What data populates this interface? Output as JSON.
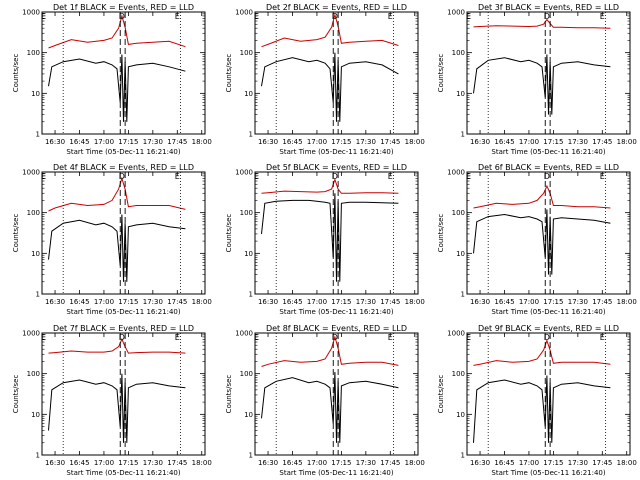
{
  "chart_data": [
    {
      "type": "line",
      "title": "Det 1f BLACK = Events, RED = LLD",
      "xlabel": "Start Time (05-Dec-11 16:21:40)",
      "ylabel": "Counts/sec",
      "y_scale": "log",
      "ylim": [
        1,
        1000
      ],
      "xticks": [
        "16:30",
        "16:45",
        "17:00",
        "17:15",
        "17:30",
        "17:45",
        "18:00"
      ],
      "yticks": [
        "1",
        "10",
        "100",
        "1000"
      ],
      "annotations": [
        "E",
        "D",
        "E"
      ],
      "series": [
        {
          "color": "#cc0000",
          "x": [
            "16:26",
            "16:30",
            "16:40",
            "16:50",
            "17:00",
            "17:05",
            "17:09",
            "17:11",
            "17:13",
            "17:15",
            "17:20",
            "17:30",
            "17:40",
            "17:50"
          ],
          "values": [
            130,
            150,
            210,
            180,
            200,
            230,
            400,
            800,
            420,
            160,
            170,
            180,
            190,
            140
          ]
        },
        {
          "color": "#000000",
          "x": [
            "16:26",
            "16:28",
            "16:35",
            "16:45",
            "16:55",
            "17:00",
            "17:05",
            "17:08",
            "17:10",
            "17:11",
            "17:12",
            "17:13",
            "17:14",
            "17:15",
            "17:20",
            "17:30",
            "17:40",
            "17:50"
          ],
          "values": [
            15,
            45,
            60,
            70,
            55,
            60,
            50,
            40,
            6,
            90,
            2,
            60,
            2,
            45,
            50,
            55,
            45,
            35
          ]
        }
      ]
    },
    {
      "type": "line",
      "title": "Det 2f BLACK = Events, RED = LLD",
      "xlabel": "Start Time (05-Dec-11 16:21:40)",
      "ylabel": "Counts/sec",
      "y_scale": "log",
      "ylim": [
        1,
        1000
      ],
      "xticks": [
        "16:30",
        "16:45",
        "17:00",
        "17:15",
        "17:30",
        "17:45",
        "18:00"
      ],
      "yticks": [
        "1",
        "10",
        "100",
        "1000"
      ],
      "annotations": [
        "E",
        "D",
        "E"
      ],
      "series": [
        {
          "color": "#cc0000",
          "x": [
            "16:26",
            "16:30",
            "16:40",
            "16:50",
            "17:00",
            "17:05",
            "17:09",
            "17:11",
            "17:13",
            "17:15",
            "17:20",
            "17:30",
            "17:40",
            "17:50"
          ],
          "values": [
            140,
            160,
            230,
            190,
            210,
            240,
            420,
            850,
            450,
            170,
            180,
            190,
            200,
            150
          ]
        },
        {
          "color": "#000000",
          "x": [
            "16:26",
            "16:28",
            "16:35",
            "16:45",
            "16:55",
            "17:00",
            "17:05",
            "17:08",
            "17:10",
            "17:11",
            "17:12",
            "17:13",
            "17:14",
            "17:15",
            "17:20",
            "17:30",
            "17:40",
            "17:50"
          ],
          "values": [
            15,
            45,
            60,
            75,
            60,
            65,
            55,
            40,
            6,
            100,
            2,
            65,
            2,
            45,
            55,
            60,
            50,
            30
          ]
        }
      ]
    },
    {
      "type": "line",
      "title": "Det 3f BLACK = Events, RED = LLD",
      "xlabel": "Start Time (05-Dec-11 16:21:40)",
      "ylabel": "Counts/sec",
      "y_scale": "log",
      "ylim": [
        1,
        1000
      ],
      "xticks": [
        "16:30",
        "16:45",
        "17:00",
        "17:15",
        "17:30",
        "17:45",
        "18:00"
      ],
      "yticks": [
        "1",
        "10",
        "100",
        "1000"
      ],
      "annotations": [
        "E",
        "D",
        "E"
      ],
      "series": [
        {
          "color": "#cc0000",
          "x": [
            "16:26",
            "16:30",
            "16:40",
            "16:50",
            "17:00",
            "17:05",
            "17:09",
            "17:11",
            "17:13",
            "17:15",
            "17:20",
            "17:30",
            "17:40",
            "17:50"
          ],
          "values": [
            430,
            440,
            460,
            450,
            440,
            450,
            500,
            650,
            520,
            420,
            420,
            410,
            410,
            400
          ]
        },
        {
          "color": "#000000",
          "x": [
            "16:26",
            "16:28",
            "16:35",
            "16:45",
            "16:55",
            "17:00",
            "17:05",
            "17:08",
            "17:10",
            "17:11",
            "17:12",
            "17:13",
            "17:14",
            "17:15",
            "17:20",
            "17:30",
            "17:40",
            "17:50"
          ],
          "values": [
            10,
            40,
            65,
            75,
            60,
            65,
            55,
            45,
            8,
            90,
            3,
            60,
            3,
            45,
            55,
            60,
            50,
            45
          ]
        }
      ]
    },
    {
      "type": "line",
      "title": "Det 4f BLACK = Events, RED = LLD",
      "xlabel": "Start Time (05-Dec-11 16:21:40)",
      "ylabel": "Counts/sec",
      "y_scale": "log",
      "ylim": [
        1,
        1000
      ],
      "xticks": [
        "16:30",
        "16:45",
        "17:00",
        "17:15",
        "17:30",
        "17:45",
        "18:00"
      ],
      "yticks": [
        "1",
        "10",
        "100",
        "1000"
      ],
      "annotations": [
        "E",
        "D",
        "E"
      ],
      "series": [
        {
          "color": "#cc0000",
          "x": [
            "16:26",
            "16:30",
            "16:40",
            "16:50",
            "17:00",
            "17:05",
            "17:09",
            "17:11",
            "17:13",
            "17:15",
            "17:20",
            "17:30",
            "17:40",
            "17:50"
          ],
          "values": [
            110,
            130,
            170,
            150,
            160,
            200,
            380,
            700,
            380,
            140,
            150,
            150,
            150,
            120
          ]
        },
        {
          "color": "#000000",
          "x": [
            "16:26",
            "16:28",
            "16:35",
            "16:45",
            "16:55",
            "17:00",
            "17:05",
            "17:08",
            "17:10",
            "17:11",
            "17:12",
            "17:13",
            "17:14",
            "17:15",
            "17:20",
            "17:30",
            "17:40",
            "17:50"
          ],
          "values": [
            7,
            35,
            55,
            65,
            50,
            55,
            45,
            35,
            5,
            90,
            2,
            55,
            2,
            45,
            50,
            55,
            45,
            40
          ]
        }
      ]
    },
    {
      "type": "line",
      "title": "Det 5f BLACK = Events, RED = LLD",
      "xlabel": "Start Time (05-Dec-11 16:21:40)",
      "ylabel": "Counts/sec",
      "y_scale": "log",
      "ylim": [
        1,
        1000
      ],
      "xticks": [
        "16:30",
        "16:45",
        "17:00",
        "17:15",
        "17:30",
        "17:45",
        "18:00"
      ],
      "yticks": [
        "1",
        "10",
        "100",
        "1000"
      ],
      "annotations": [
        "E",
        "D",
        "E"
      ],
      "series": [
        {
          "color": "#cc0000",
          "x": [
            "16:26",
            "16:30",
            "16:40",
            "16:50",
            "17:00",
            "17:05",
            "17:09",
            "17:11",
            "17:13",
            "17:15",
            "17:20",
            "17:30",
            "17:40",
            "17:50"
          ],
          "values": [
            300,
            310,
            340,
            330,
            320,
            330,
            380,
            650,
            380,
            300,
            300,
            310,
            310,
            300
          ]
        },
        {
          "color": "#000000",
          "x": [
            "16:26",
            "16:28",
            "16:35",
            "16:45",
            "16:55",
            "17:00",
            "17:05",
            "17:08",
            "17:10",
            "17:11",
            "17:12",
            "17:13",
            "17:14",
            "17:15",
            "17:20",
            "17:30",
            "17:40",
            "17:50"
          ],
          "values": [
            30,
            170,
            190,
            200,
            200,
            190,
            180,
            170,
            8,
            300,
            2,
            190,
            2,
            170,
            180,
            180,
            175,
            170
          ]
        }
      ]
    },
    {
      "type": "line",
      "title": "Det 6f BLACK = Events, RED = LLD",
      "xlabel": "Start Time (05-Dec-11 16:21:40)",
      "ylabel": "Counts/sec",
      "y_scale": "log",
      "ylim": [
        1,
        1000
      ],
      "xticks": [
        "16:30",
        "16:45",
        "17:00",
        "17:15",
        "17:30",
        "17:45",
        "18:00"
      ],
      "yticks": [
        "1",
        "10",
        "100",
        "1000"
      ],
      "annotations": [
        "E",
        "D",
        "E"
      ],
      "series": [
        {
          "color": "#cc0000",
          "x": [
            "16:26",
            "16:30",
            "16:40",
            "16:50",
            "17:00",
            "17:05",
            "17:09",
            "17:11",
            "17:13",
            "17:15",
            "17:20",
            "17:30",
            "17:40",
            "17:50"
          ],
          "values": [
            130,
            140,
            170,
            160,
            170,
            200,
            300,
            450,
            300,
            150,
            150,
            140,
            140,
            130
          ]
        },
        {
          "color": "#000000",
          "x": [
            "16:26",
            "16:28",
            "16:35",
            "16:45",
            "16:55",
            "17:00",
            "17:05",
            "17:08",
            "17:10",
            "17:11",
            "17:12",
            "17:13",
            "17:14",
            "17:15",
            "17:20",
            "17:30",
            "17:40",
            "17:50"
          ],
          "values": [
            10,
            60,
            80,
            90,
            75,
            80,
            70,
            60,
            8,
            120,
            3,
            80,
            3,
            70,
            75,
            70,
            65,
            55
          ]
        }
      ]
    },
    {
      "type": "line",
      "title": "Det 7f BLACK = Events, RED = LLD",
      "xlabel": "Start Time (05-Dec-11 16:21:40)",
      "ylabel": "Counts/sec",
      "y_scale": "log",
      "ylim": [
        1,
        1000
      ],
      "xticks": [
        "16:30",
        "16:45",
        "17:00",
        "17:15",
        "17:30",
        "17:45",
        "18:00"
      ],
      "yticks": [
        "1",
        "10",
        "100",
        "1000"
      ],
      "annotations": [
        "E",
        "D",
        "E"
      ],
      "series": [
        {
          "color": "#cc0000",
          "x": [
            "16:26",
            "16:30",
            "16:40",
            "16:50",
            "17:00",
            "17:05",
            "17:09",
            "17:11",
            "17:13",
            "17:15",
            "17:20",
            "17:30",
            "17:40",
            "17:50"
          ],
          "values": [
            320,
            330,
            360,
            340,
            340,
            360,
            460,
            700,
            460,
            320,
            330,
            340,
            340,
            320
          ]
        },
        {
          "color": "#000000",
          "x": [
            "16:26",
            "16:28",
            "16:35",
            "16:45",
            "16:55",
            "17:00",
            "17:05",
            "17:08",
            "17:10",
            "17:11",
            "17:12",
            "17:13",
            "17:14",
            "17:15",
            "17:20",
            "17:30",
            "17:40",
            "17:50"
          ],
          "values": [
            4,
            40,
            60,
            70,
            55,
            60,
            50,
            40,
            5,
            100,
            2,
            60,
            2,
            45,
            55,
            60,
            50,
            45
          ]
        }
      ]
    },
    {
      "type": "line",
      "title": "Det 8f BLACK = Events, RED = LLD",
      "xlabel": "Start Time (05-Dec-11 16:21:40)",
      "ylabel": "Counts/sec",
      "y_scale": "log",
      "ylim": [
        1,
        1000
      ],
      "xticks": [
        "16:30",
        "16:45",
        "17:00",
        "17:15",
        "17:30",
        "17:45",
        "18:00"
      ],
      "yticks": [
        "1",
        "10",
        "100",
        "1000"
      ],
      "annotations": [
        "E",
        "D",
        "E"
      ],
      "series": [
        {
          "color": "#cc0000",
          "x": [
            "16:26",
            "16:30",
            "16:40",
            "16:50",
            "17:00",
            "17:05",
            "17:09",
            "17:11",
            "17:13",
            "17:15",
            "17:20",
            "17:30",
            "17:40",
            "17:50"
          ],
          "values": [
            150,
            170,
            210,
            190,
            200,
            230,
            420,
            800,
            420,
            170,
            180,
            190,
            190,
            160
          ]
        },
        {
          "color": "#000000",
          "x": [
            "16:26",
            "16:28",
            "16:35",
            "16:45",
            "16:55",
            "17:00",
            "17:05",
            "17:08",
            "17:10",
            "17:11",
            "17:12",
            "17:13",
            "17:14",
            "17:15",
            "17:20",
            "17:30",
            "17:40",
            "17:50"
          ],
          "values": [
            8,
            45,
            65,
            80,
            60,
            65,
            55,
            45,
            6,
            110,
            2,
            65,
            2,
            50,
            60,
            65,
            55,
            45
          ]
        }
      ]
    },
    {
      "type": "line",
      "title": "Det 9f BLACK = Events, RED = LLD",
      "xlabel": "Start Time (05-Dec-11 16:21:40)",
      "ylabel": "Counts/sec",
      "y_scale": "log",
      "ylim": [
        1,
        1000
      ],
      "xticks": [
        "16:30",
        "16:45",
        "17:00",
        "17:15",
        "17:30",
        "17:45",
        "18:00"
      ],
      "yticks": [
        "1",
        "10",
        "100",
        "1000"
      ],
      "annotations": [
        "E",
        "D",
        "E"
      ],
      "series": [
        {
          "color": "#cc0000",
          "x": [
            "16:26",
            "16:30",
            "16:40",
            "16:50",
            "17:00",
            "17:05",
            "17:09",
            "17:11",
            "17:13",
            "17:15",
            "17:20",
            "17:30",
            "17:40",
            "17:50"
          ],
          "values": [
            160,
            170,
            210,
            190,
            200,
            230,
            380,
            650,
            380,
            180,
            190,
            190,
            190,
            170
          ]
        },
        {
          "color": "#000000",
          "x": [
            "16:26",
            "16:28",
            "16:35",
            "16:45",
            "16:55",
            "17:00",
            "17:05",
            "17:08",
            "17:10",
            "17:11",
            "17:12",
            "17:13",
            "17:14",
            "17:15",
            "17:20",
            "17:30",
            "17:40",
            "17:50"
          ],
          "values": [
            2,
            40,
            60,
            70,
            55,
            60,
            50,
            40,
            5,
            90,
            2,
            60,
            2,
            45,
            55,
            60,
            50,
            45
          ]
        }
      ]
    }
  ]
}
